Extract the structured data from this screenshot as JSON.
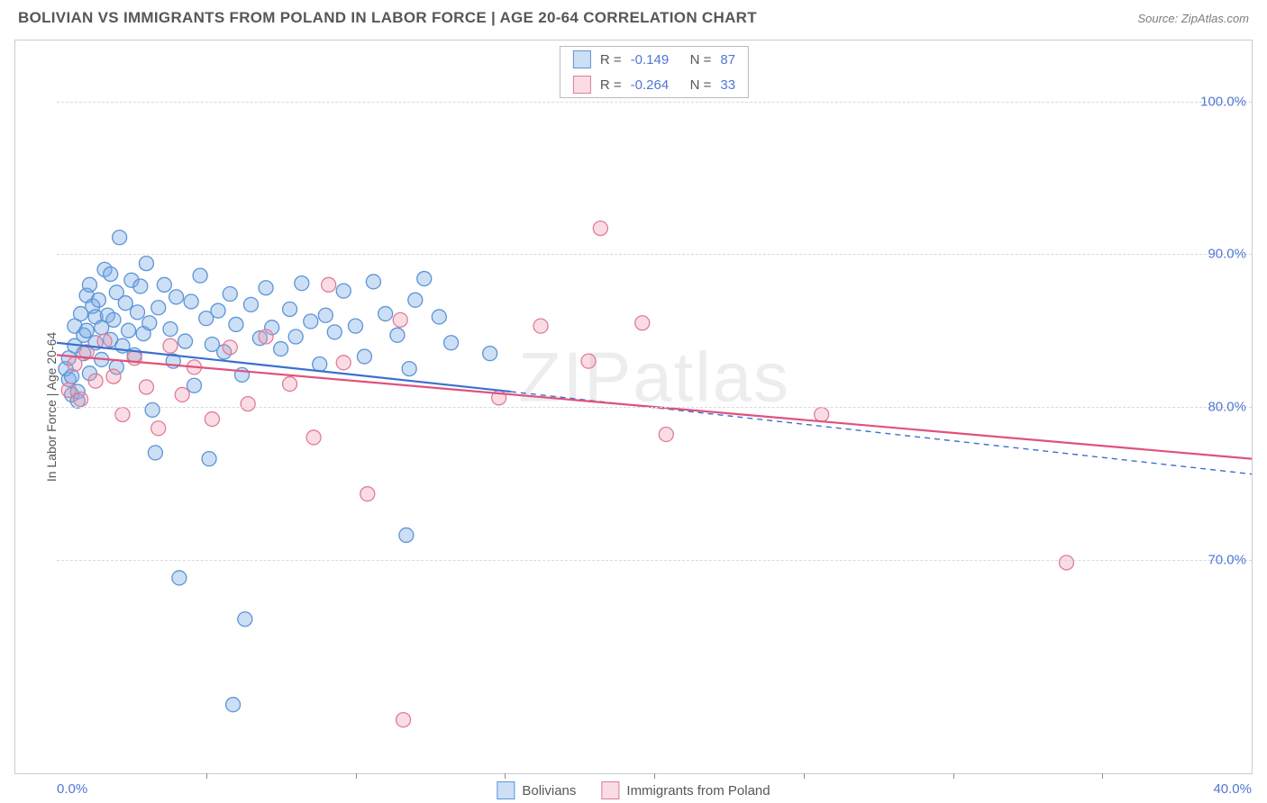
{
  "header": {
    "title": "BOLIVIAN VS IMMIGRANTS FROM POLAND IN LABOR FORCE | AGE 20-64 CORRELATION CHART",
    "source": "Source: ZipAtlas.com"
  },
  "watermark": "ZIPatlas",
  "chart": {
    "type": "scatter",
    "ylabel": "In Labor Force | Age 20-64",
    "xlim": [
      0,
      40
    ],
    "ylim": [
      56,
      104
    ],
    "xtick_major": [
      0,
      40
    ],
    "xtick_minor": [
      5,
      10,
      15,
      20,
      25,
      30,
      35
    ],
    "xtick_labels": [
      "0.0%",
      "40.0%"
    ],
    "ytick": [
      70,
      80,
      90,
      100
    ],
    "ytick_labels": [
      "70.0%",
      "80.0%",
      "90.0%",
      "100.0%"
    ],
    "grid_color": "#d8dadf",
    "background_color": "#ffffff",
    "marker_radius": 8,
    "marker_stroke_width": 1.3,
    "series": [
      {
        "name": "Bolivians",
        "fill": "rgba(120,170,230,0.38)",
        "stroke": "#5c94d6",
        "R": "-0.149",
        "N": "87",
        "trend": {
          "x1": 0,
          "y1": 84.2,
          "x2": 15.2,
          "y2": 81.0,
          "solid_until_x": 15.2,
          "dash_to_x": 40,
          "dash_to_y": 75.6,
          "color": "#3a6fd1",
          "width": 2.2
        },
        "points": [
          [
            0.3,
            82.5
          ],
          [
            0.4,
            83.2
          ],
          [
            0.4,
            81.8
          ],
          [
            0.5,
            80.8
          ],
          [
            0.5,
            82.0
          ],
          [
            0.6,
            84.0
          ],
          [
            0.6,
            85.3
          ],
          [
            0.7,
            81.0
          ],
          [
            0.7,
            80.4
          ],
          [
            0.8,
            86.1
          ],
          [
            0.9,
            84.7
          ],
          [
            0.9,
            83.5
          ],
          [
            1.0,
            87.3
          ],
          [
            1.0,
            85.0
          ],
          [
            1.1,
            82.2
          ],
          [
            1.1,
            88.0
          ],
          [
            1.2,
            86.6
          ],
          [
            1.3,
            85.9
          ],
          [
            1.3,
            84.2
          ],
          [
            1.4,
            87.0
          ],
          [
            1.5,
            85.2
          ],
          [
            1.5,
            83.1
          ],
          [
            1.6,
            89.0
          ],
          [
            1.7,
            86.0
          ],
          [
            1.8,
            84.4
          ],
          [
            1.8,
            88.7
          ],
          [
            1.9,
            85.7
          ],
          [
            2.0,
            87.5
          ],
          [
            2.0,
            82.6
          ],
          [
            2.1,
            91.1
          ],
          [
            2.2,
            84.0
          ],
          [
            2.3,
            86.8
          ],
          [
            2.4,
            85.0
          ],
          [
            2.5,
            88.3
          ],
          [
            2.6,
            83.4
          ],
          [
            2.7,
            86.2
          ],
          [
            2.8,
            87.9
          ],
          [
            2.9,
            84.8
          ],
          [
            3.0,
            89.4
          ],
          [
            3.1,
            85.5
          ],
          [
            3.2,
            79.8
          ],
          [
            3.3,
            77.0
          ],
          [
            3.4,
            86.5
          ],
          [
            3.6,
            88.0
          ],
          [
            3.8,
            85.1
          ],
          [
            3.9,
            83.0
          ],
          [
            4.0,
            87.2
          ],
          [
            4.1,
            68.8
          ],
          [
            4.3,
            84.3
          ],
          [
            4.5,
            86.9
          ],
          [
            4.6,
            81.4
          ],
          [
            4.8,
            88.6
          ],
          [
            5.0,
            85.8
          ],
          [
            5.1,
            76.6
          ],
          [
            5.2,
            84.1
          ],
          [
            5.4,
            86.3
          ],
          [
            5.6,
            83.6
          ],
          [
            5.8,
            87.4
          ],
          [
            5.9,
            60.5
          ],
          [
            6.0,
            85.4
          ],
          [
            6.2,
            82.1
          ],
          [
            6.3,
            66.1
          ],
          [
            6.5,
            86.7
          ],
          [
            6.8,
            84.5
          ],
          [
            7.0,
            87.8
          ],
          [
            7.2,
            85.2
          ],
          [
            7.5,
            83.8
          ],
          [
            7.8,
            86.4
          ],
          [
            8.0,
            84.6
          ],
          [
            8.2,
            88.1
          ],
          [
            8.5,
            85.6
          ],
          [
            8.8,
            82.8
          ],
          [
            9.0,
            86.0
          ],
          [
            9.3,
            84.9
          ],
          [
            9.6,
            87.6
          ],
          [
            10.0,
            85.3
          ],
          [
            10.3,
            83.3
          ],
          [
            10.6,
            88.2
          ],
          [
            11.0,
            86.1
          ],
          [
            11.4,
            84.7
          ],
          [
            11.7,
            71.6
          ],
          [
            11.8,
            82.5
          ],
          [
            12.0,
            87.0
          ],
          [
            12.3,
            88.4
          ],
          [
            12.8,
            85.9
          ],
          [
            13.2,
            84.2
          ],
          [
            14.5,
            83.5
          ]
        ]
      },
      {
        "name": "Immigrants from Poland",
        "fill": "rgba(240,150,170,0.32)",
        "stroke": "#e07c96",
        "R": "-0.264",
        "N": "33",
        "trend": {
          "x1": 0,
          "y1": 83.4,
          "x2": 40,
          "y2": 76.6,
          "color": "#e0527a",
          "width": 2.2
        },
        "points": [
          [
            0.4,
            81.1
          ],
          [
            0.6,
            82.8
          ],
          [
            0.8,
            80.5
          ],
          [
            1.0,
            83.6
          ],
          [
            1.3,
            81.7
          ],
          [
            1.6,
            84.3
          ],
          [
            1.9,
            82.0
          ],
          [
            2.2,
            79.5
          ],
          [
            2.6,
            83.2
          ],
          [
            3.0,
            81.3
          ],
          [
            3.4,
            78.6
          ],
          [
            3.8,
            84.0
          ],
          [
            4.2,
            80.8
          ],
          [
            4.6,
            82.6
          ],
          [
            5.2,
            79.2
          ],
          [
            5.8,
            83.9
          ],
          [
            6.4,
            80.2
          ],
          [
            7.0,
            84.6
          ],
          [
            7.8,
            81.5
          ],
          [
            8.6,
            78.0
          ],
          [
            9.1,
            88.0
          ],
          [
            9.6,
            82.9
          ],
          [
            10.4,
            74.3
          ],
          [
            11.5,
            85.7
          ],
          [
            11.6,
            59.5
          ],
          [
            14.8,
            80.6
          ],
          [
            16.2,
            85.3
          ],
          [
            17.8,
            83.0
          ],
          [
            18.2,
            91.7
          ],
          [
            19.6,
            85.5
          ],
          [
            20.4,
            78.2
          ],
          [
            25.6,
            79.5
          ],
          [
            33.8,
            69.8
          ]
        ]
      }
    ]
  },
  "legend_top": [
    {
      "swatch_fill": "rgba(120,170,230,0.38)",
      "swatch_stroke": "#5c94d6",
      "R_label": "R =",
      "R": "-0.149",
      "N_label": "N =",
      "N": "87"
    },
    {
      "swatch_fill": "rgba(240,150,170,0.32)",
      "swatch_stroke": "#e07c96",
      "R_label": "R =",
      "R": "-0.264",
      "N_label": "N =",
      "N": "33"
    }
  ],
  "legend_bottom": [
    {
      "swatch_fill": "rgba(120,170,230,0.38)",
      "swatch_stroke": "#5c94d6",
      "label": "Bolivians"
    },
    {
      "swatch_fill": "rgba(240,150,170,0.32)",
      "swatch_stroke": "#e07c96",
      "label": "Immigrants from Poland"
    }
  ]
}
